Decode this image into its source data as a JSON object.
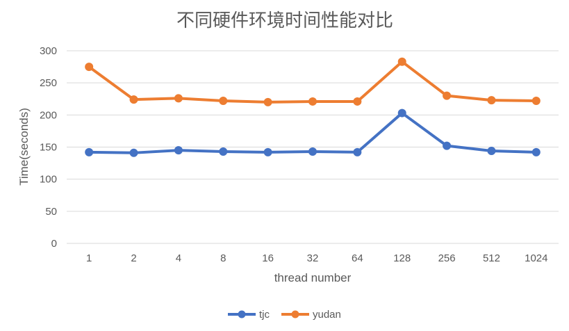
{
  "chart_data": {
    "type": "line",
    "title": "不同硬件环境时间性能对比",
    "xlabel": "thread number",
    "ylabel": "Time(seconds)",
    "categories": [
      "1",
      "2",
      "4",
      "8",
      "16",
      "32",
      "64",
      "128",
      "256",
      "512",
      "1024"
    ],
    "ylim": [
      0,
      300
    ],
    "yticks": [
      0,
      50,
      100,
      150,
      200,
      250,
      300
    ],
    "grid": true,
    "legend_position": "bottom",
    "series": [
      {
        "name": "tjc",
        "color": "#4472C4",
        "values": [
          142,
          141,
          145,
          143,
          142,
          143,
          142,
          203,
          152,
          144,
          142
        ]
      },
      {
        "name": "yudan",
        "color": "#ED7D31",
        "values": [
          275,
          224,
          226,
          222,
          220,
          221,
          221,
          283,
          230,
          223,
          222
        ]
      }
    ]
  }
}
